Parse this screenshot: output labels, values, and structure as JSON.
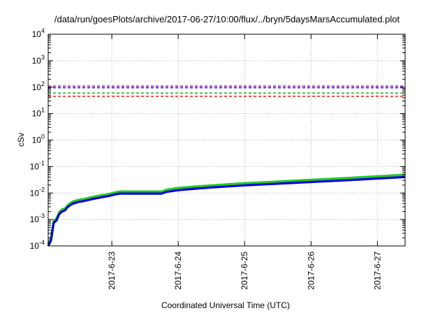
{
  "chart_data": {
    "type": "line",
    "title": "/data/run/goesPlots/archive/2017-06-27/10:00/flux/../bryn/5daysMarsAccumulated.plot",
    "xlabel": "Coordinated Universal Time (UTC)",
    "ylabel": "cSv",
    "yscale": "log",
    "ylim": [
      0.0001,
      10000
    ],
    "xlim": [
      "2017-06-22T01:00",
      "2017-06-27T10:00"
    ],
    "y_ticks": [
      {
        "base": "10",
        "exp": "-4"
      },
      {
        "base": "10",
        "exp": "-3"
      },
      {
        "base": "10",
        "exp": "-2"
      },
      {
        "base": "10",
        "exp": "-1"
      },
      {
        "base": "10",
        "exp": "0"
      },
      {
        "base": "10",
        "exp": "1"
      },
      {
        "base": "10",
        "exp": "2"
      },
      {
        "base": "10",
        "exp": "3"
      },
      {
        "base": "10",
        "exp": "4"
      }
    ],
    "x_ticks": [
      {
        "label": "2017-6-23",
        "time": "2017-06-23T00:00"
      },
      {
        "label": "2017-6-24",
        "time": "2017-06-24T00:00"
      },
      {
        "label": "2017-6-25",
        "time": "2017-06-25T00:00"
      },
      {
        "label": "2017-6-26",
        "time": "2017-06-26T00:00"
      },
      {
        "label": "2017-6-27",
        "time": "2017-06-27T00:00"
      }
    ],
    "grid": true,
    "reference_lines": [
      {
        "y": 110,
        "color": "#9b30c8"
      },
      {
        "y": 95,
        "color": "#1a1aff"
      },
      {
        "y": 60,
        "color": "#22bb22"
      },
      {
        "y": 45,
        "color": "#e81a1a"
      }
    ],
    "series": [
      {
        "color": "#22cc22",
        "x": [
          "2017-06-22T01:00",
          "2017-06-22T02:00",
          "2017-06-22T03:00",
          "2017-06-22T04:00",
          "2017-06-22T05:00",
          "2017-06-22T06:00",
          "2017-06-22T07:00",
          "2017-06-22T08:00",
          "2017-06-22T09:00",
          "2017-06-22T10:00",
          "2017-06-22T12:00",
          "2017-06-22T14:00",
          "2017-06-22T16:00",
          "2017-06-22T18:00",
          "2017-06-22T20:00",
          "2017-06-22T22:00",
          "2017-06-23T00:00",
          "2017-06-23T02:00",
          "2017-06-23T03:00",
          "2017-06-23T12:00",
          "2017-06-23T18:00",
          "2017-06-23T19:00",
          "2017-06-23T20:00",
          "2017-06-24T00:00",
          "2017-06-24T06:00",
          "2017-06-24T12:00",
          "2017-06-24T18:00",
          "2017-06-25T00:00",
          "2017-06-25T12:00",
          "2017-06-26T00:00",
          "2017-06-26T12:00",
          "2017-06-27T00:00",
          "2017-06-27T10:00"
        ],
        "y": [
          0.00012,
          0.0002,
          0.0009,
          0.0011,
          0.0019,
          0.0024,
          0.0026,
          0.0034,
          0.0042,
          0.0048,
          0.0055,
          0.006,
          0.0067,
          0.0074,
          0.0082,
          0.0088,
          0.0098,
          0.011,
          0.0114,
          0.0114,
          0.0114,
          0.0125,
          0.0135,
          0.0155,
          0.0175,
          0.0195,
          0.0215,
          0.0235,
          0.0272,
          0.0315,
          0.0365,
          0.043,
          0.049
        ]
      },
      {
        "color": "#0000dd",
        "x": [
          "2017-06-22T01:00",
          "2017-06-22T02:00",
          "2017-06-22T03:00",
          "2017-06-22T04:00",
          "2017-06-22T05:00",
          "2017-06-22T06:00",
          "2017-06-22T07:00",
          "2017-06-22T08:00",
          "2017-06-22T09:00",
          "2017-06-22T10:00",
          "2017-06-22T12:00",
          "2017-06-22T14:00",
          "2017-06-22T16:00",
          "2017-06-22T18:00",
          "2017-06-22T20:00",
          "2017-06-22T22:00",
          "2017-06-23T00:00",
          "2017-06-23T02:00",
          "2017-06-23T03:00",
          "2017-06-23T12:00",
          "2017-06-23T18:00",
          "2017-06-23T19:00",
          "2017-06-23T20:00",
          "2017-06-24T00:00",
          "2017-06-24T06:00",
          "2017-06-24T12:00",
          "2017-06-24T18:00",
          "2017-06-25T00:00",
          "2017-06-25T12:00",
          "2017-06-26T00:00",
          "2017-06-26T12:00",
          "2017-06-27T00:00",
          "2017-06-27T10:00"
        ],
        "y": [
          0.0001,
          0.00016,
          0.00075,
          0.00092,
          0.0016,
          0.002,
          0.0022,
          0.0029,
          0.0035,
          0.004,
          0.0046,
          0.005,
          0.0056,
          0.0062,
          0.0068,
          0.0074,
          0.0082,
          0.0092,
          0.0095,
          0.0095,
          0.0095,
          0.0104,
          0.0112,
          0.0128,
          0.0145,
          0.0162,
          0.0178,
          0.0195,
          0.0225,
          0.026,
          0.03,
          0.0352,
          0.04
        ]
      }
    ]
  }
}
